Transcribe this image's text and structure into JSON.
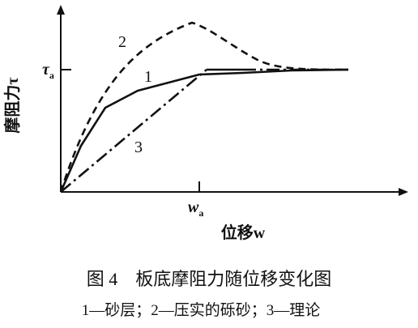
{
  "figure": {
    "y_axis_label": "摩阻力τ",
    "y_marker": {
      "symbol": "τ",
      "subscript": "a"
    },
    "x_marker": {
      "symbol": "w",
      "subscript": "a"
    },
    "x_axis_label": "位移w",
    "curve_labels": [
      "1",
      "2",
      "3"
    ],
    "caption": "图 4　板底摩阻力随位移变化图",
    "legend": "1—砂层；2—压实的砾砂；3—理论"
  }
}
